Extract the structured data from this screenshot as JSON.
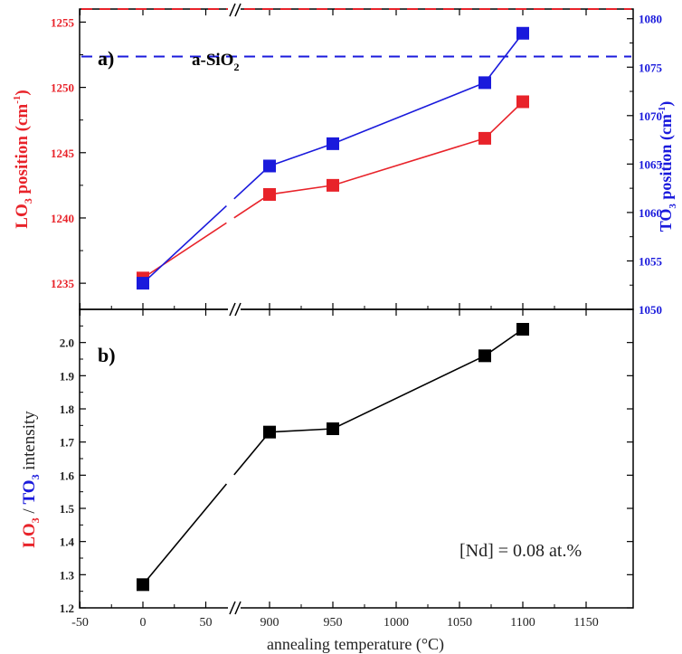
{
  "chart_data": [
    {
      "type": "line",
      "panel_label": "a)",
      "annotation": "a-SiO2",
      "x_tick_labels": [
        "-50",
        "0",
        "50",
        "900",
        "950",
        "1000",
        "1050",
        "1100",
        "1150"
      ],
      "x": [
        0,
        900,
        950,
        1070,
        1100
      ],
      "y_left": {
        "label": "LO3 position (cm-1)",
        "range": [
          1233,
          1256
        ],
        "ticks": [
          1235,
          1240,
          1245,
          1250,
          1255
        ],
        "color": "#e8232a"
      },
      "y_right": {
        "label": "TO3 position (cm-1)",
        "range": [
          1050,
          1081
        ],
        "ticks": [
          1050,
          1055,
          1060,
          1065,
          1070,
          1075,
          1080
        ],
        "color": "#1a1adc"
      },
      "series": [
        {
          "name": "LO3",
          "axis": "left",
          "color": "#e8232a",
          "values": [
            1235.4,
            1241.8,
            1242.5,
            1246.1,
            1248.9
          ],
          "reference": 1256.0
        },
        {
          "name": "TO3",
          "axis": "right",
          "color": "#1a1adc",
          "values": [
            1052.7,
            1064.8,
            1067.1,
            1073.4,
            1078.5
          ],
          "reference": 1076.1
        }
      ]
    },
    {
      "type": "line",
      "panel_label": "b)",
      "annotation": "[Nd] = 0.08 at.%",
      "x": [
        0,
        900,
        950,
        1070,
        1100
      ],
      "x_tick_labels": [
        "-50",
        "0",
        "50",
        "900",
        "950",
        "1000",
        "1050",
        "1100",
        "1150"
      ],
      "xlabel": "annealing temperature (°C)",
      "y": {
        "label": "LO3 / TO3 intensity",
        "range": [
          1.2,
          2.1
        ],
        "ticks": [
          "1.2",
          "1.3",
          "1.4",
          "1.5",
          "1.6",
          "1.7",
          "1.8",
          "1.9",
          "2.0"
        ]
      },
      "series": [
        {
          "color": "#000000",
          "values": [
            1.27,
            1.73,
            1.74,
            1.96,
            2.04
          ]
        }
      ]
    }
  ]
}
